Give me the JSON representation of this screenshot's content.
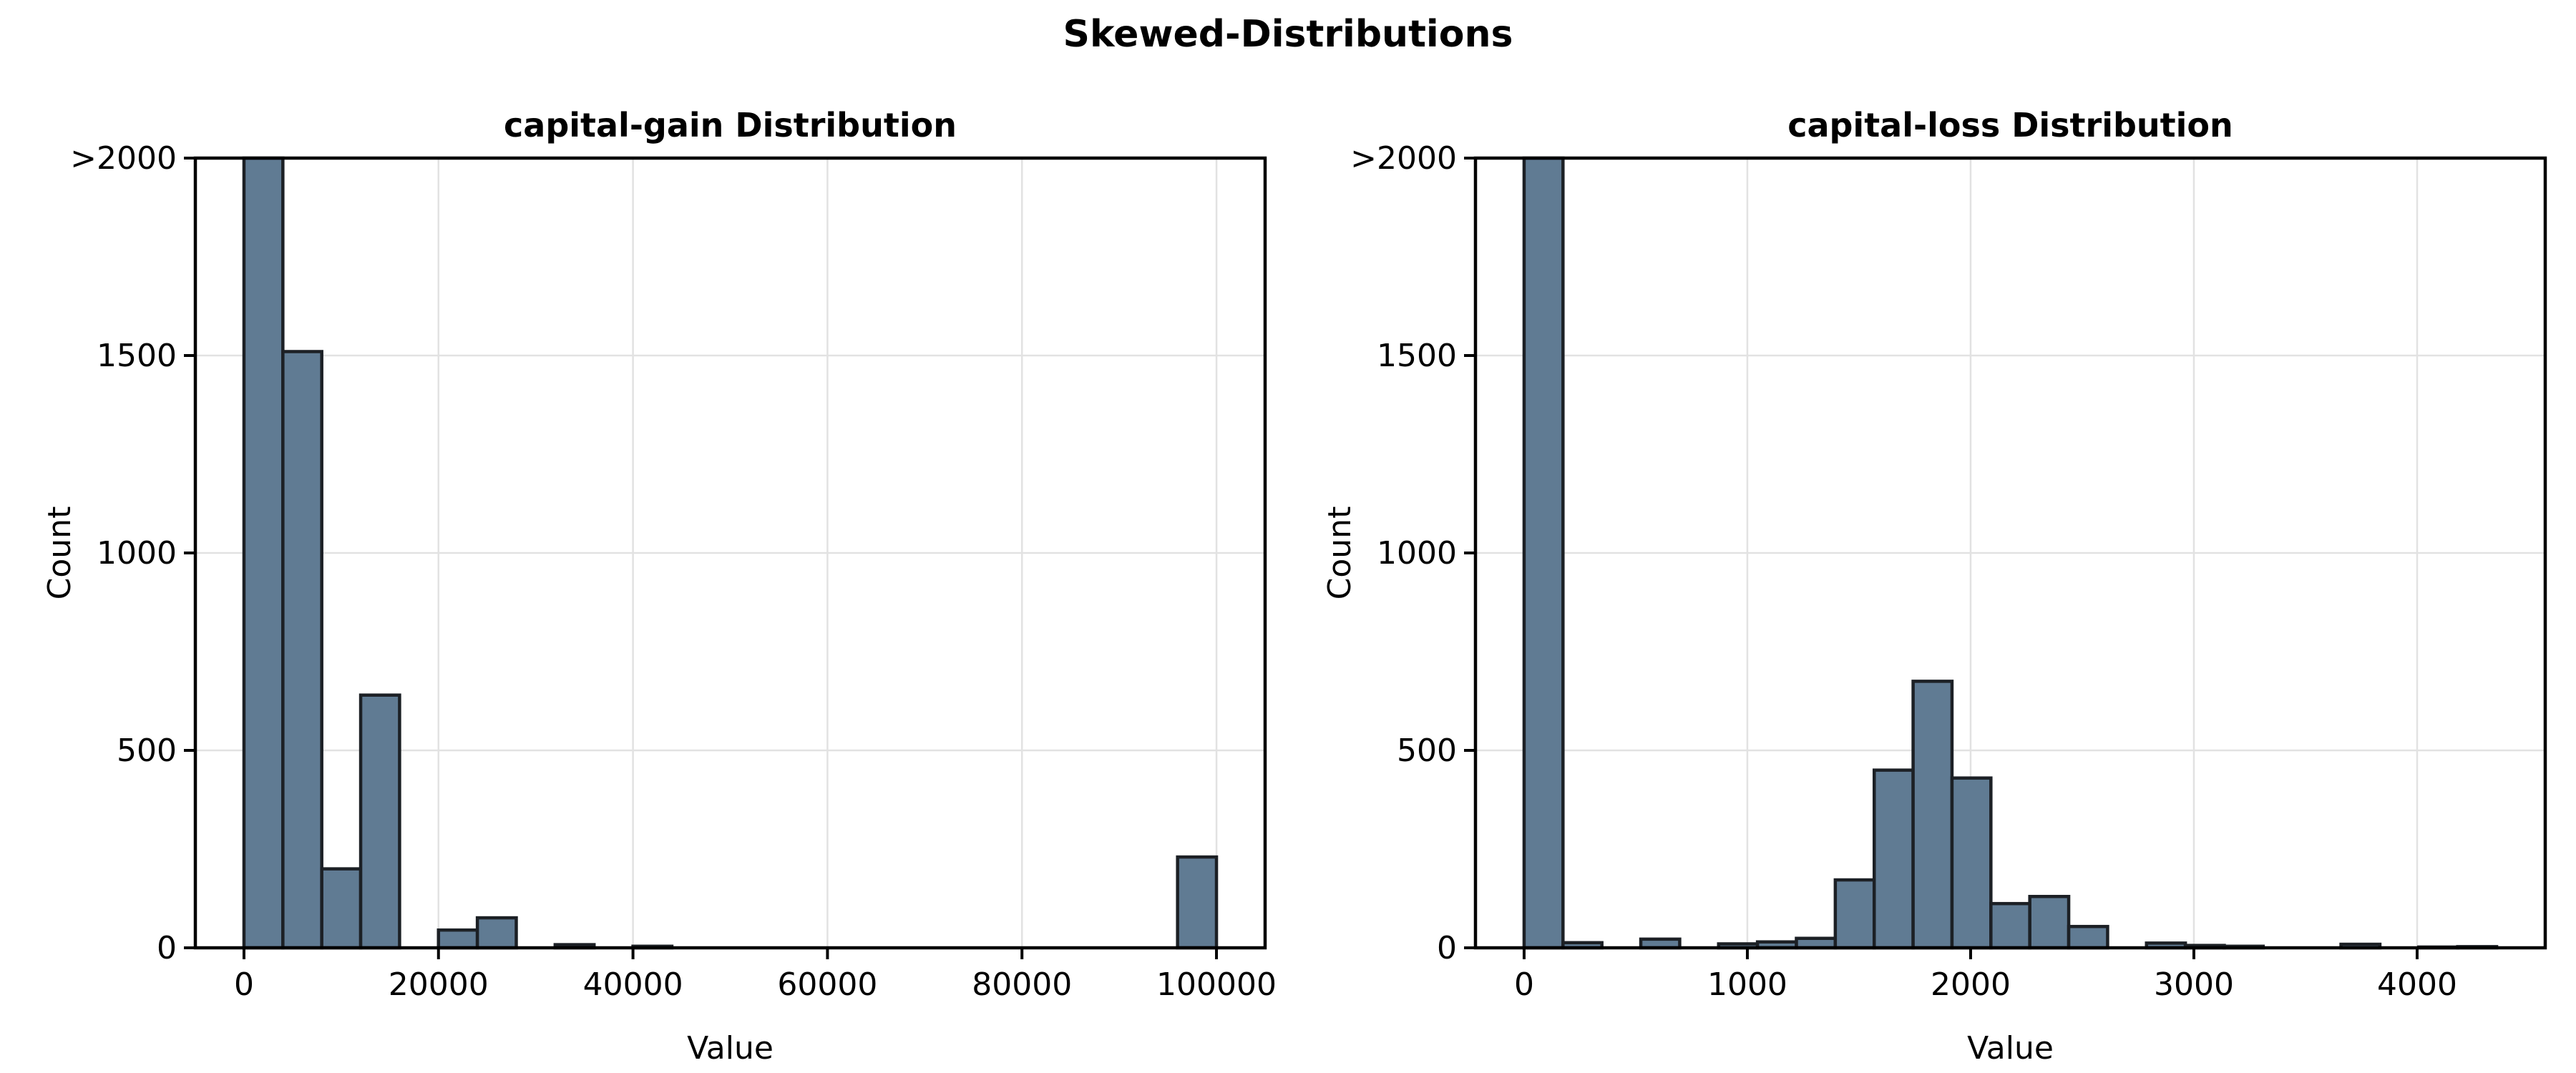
{
  "figure": {
    "suptitle": "Skewed-Distributions",
    "background": "#ffffff"
  },
  "colors": {
    "bar_fill": "#607b93",
    "bar_edge": "#1c2025",
    "grid": "#e2e2e2",
    "spine": "#000000",
    "text": "#000000",
    "background": "#ffffff"
  },
  "chart_data": [
    {
      "type": "bar",
      "subtype": "histogram",
      "title": "capital-gain Distribution",
      "xlabel": "Value",
      "ylabel": "Count",
      "bin_start": 0,
      "bin_width": 4000,
      "counts": [
        2000,
        1510,
        200,
        640,
        0,
        45,
        76,
        0,
        8,
        0,
        4,
        0,
        0,
        0,
        0,
        0,
        0,
        0,
        0,
        0,
        0,
        0,
        0,
        0,
        230
      ],
      "first_bin_clipped": true,
      "clip_note": "first bin exceeds axis and is drawn clipped at 2000 (>2000)",
      "xlim": [
        -5000,
        105000
      ],
      "xticks": [
        0,
        20000,
        40000,
        60000,
        80000,
        100000
      ],
      "xtick_labels": [
        "0",
        "20000",
        "40000",
        "60000",
        "80000",
        "100000"
      ],
      "ylim": [
        0,
        2000
      ],
      "yticks": [
        0,
        500,
        1000,
        1500,
        2000
      ],
      "ytick_labels": [
        "0",
        "500",
        "1000",
        "1500",
        ">2000"
      ],
      "grid": true,
      "legend": null
    },
    {
      "type": "bar",
      "subtype": "histogram",
      "title": "capital-loss Distribution",
      "xlabel": "Value",
      "ylabel": "Count",
      "bin_start": 0,
      "bin_width": 174.24,
      "counts": [
        2000,
        13,
        0,
        22,
        0,
        10,
        15,
        24,
        172,
        450,
        675,
        430,
        112,
        130,
        54,
        0,
        12,
        6,
        4,
        0,
        0,
        9,
        0,
        2,
        3
      ],
      "first_bin_clipped": true,
      "clip_note": "first bin exceeds axis and is drawn clipped at 2000 (>2000)",
      "xlim": [
        -217.8,
        4573.8
      ],
      "xticks": [
        0,
        1000,
        2000,
        3000,
        4000
      ],
      "xtick_labels": [
        "0",
        "1000",
        "2000",
        "3000",
        "4000"
      ],
      "ylim": [
        0,
        2000
      ],
      "yticks": [
        0,
        500,
        1000,
        1500,
        2000
      ],
      "ytick_labels": [
        "0",
        "500",
        "1000",
        "1500",
        ">2000"
      ],
      "grid": true,
      "legend": null
    }
  ]
}
